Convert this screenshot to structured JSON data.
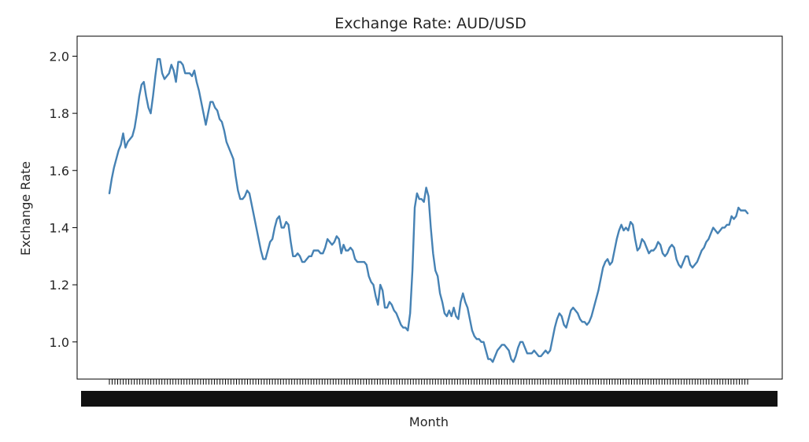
{
  "chart_data": {
    "type": "line",
    "title": "Exchange Rate: AUD/USD",
    "xlabel": "Month",
    "ylabel": "Exchange Rate",
    "ylim": [
      0.87,
      2.07
    ],
    "yticks": [
      "1.0",
      "1.2",
      "1.4",
      "1.6",
      "1.8",
      "2.0"
    ],
    "ytick_values": [
      1.0,
      1.2,
      1.4,
      1.6,
      1.8,
      2.0
    ],
    "x_tick_count": 232,
    "grid": false,
    "line_color": "#4682b4",
    "series": [
      {
        "values": [
          1.52,
          1.57,
          1.61,
          1.64,
          1.67,
          1.69,
          1.73,
          1.68,
          1.7,
          1.71,
          1.72,
          1.75,
          1.8,
          1.86,
          1.9,
          1.91,
          1.86,
          1.82,
          1.8,
          1.86,
          1.93,
          1.99,
          1.99,
          1.94,
          1.92,
          1.93,
          1.94,
          1.97,
          1.95,
          1.91,
          1.98,
          1.98,
          1.97,
          1.94,
          1.94,
          1.94,
          1.93,
          1.95,
          1.91,
          1.88,
          1.84,
          1.8,
          1.76,
          1.8,
          1.84,
          1.84,
          1.82,
          1.81,
          1.78,
          1.77,
          1.74,
          1.7,
          1.68,
          1.66,
          1.64,
          1.58,
          1.53,
          1.5,
          1.5,
          1.51,
          1.53,
          1.52,
          1.48,
          1.44,
          1.4,
          1.36,
          1.32,
          1.29,
          1.29,
          1.32,
          1.35,
          1.36,
          1.4,
          1.43,
          1.44,
          1.4,
          1.4,
          1.42,
          1.41,
          1.35,
          1.3,
          1.3,
          1.31,
          1.3,
          1.28,
          1.28,
          1.29,
          1.3,
          1.3,
          1.32,
          1.32,
          1.32,
          1.31,
          1.31,
          1.33,
          1.36,
          1.35,
          1.34,
          1.35,
          1.37,
          1.36,
          1.31,
          1.34,
          1.32,
          1.32,
          1.33,
          1.32,
          1.29,
          1.28,
          1.28,
          1.28,
          1.28,
          1.27,
          1.23,
          1.21,
          1.2,
          1.16,
          1.13,
          1.2,
          1.18,
          1.12,
          1.12,
          1.14,
          1.13,
          1.11,
          1.1,
          1.08,
          1.06,
          1.05,
          1.05,
          1.04,
          1.1,
          1.25,
          1.47,
          1.52,
          1.5,
          1.5,
          1.49,
          1.54,
          1.51,
          1.4,
          1.31,
          1.25,
          1.23,
          1.17,
          1.14,
          1.1,
          1.09,
          1.11,
          1.09,
          1.12,
          1.09,
          1.08,
          1.14,
          1.17,
          1.14,
          1.12,
          1.08,
          1.04,
          1.02,
          1.01,
          1.01,
          1.0,
          1.0,
          0.97,
          0.94,
          0.94,
          0.93,
          0.95,
          0.97,
          0.98,
          0.99,
          0.99,
          0.98,
          0.97,
          0.94,
          0.93,
          0.95,
          0.98,
          1.0,
          1.0,
          0.98,
          0.96,
          0.96,
          0.96,
          0.97,
          0.96,
          0.95,
          0.95,
          0.96,
          0.97,
          0.96,
          0.97,
          1.01,
          1.05,
          1.08,
          1.1,
          1.09,
          1.06,
          1.05,
          1.08,
          1.11,
          1.12,
          1.11,
          1.1,
          1.08,
          1.07,
          1.07,
          1.06,
          1.07,
          1.09,
          1.12,
          1.15,
          1.18,
          1.22,
          1.26,
          1.28,
          1.29,
          1.27,
          1.28,
          1.32,
          1.36,
          1.39,
          1.41,
          1.39,
          1.4,
          1.39,
          1.42,
          1.41,
          1.36,
          1.32,
          1.33,
          1.36,
          1.35,
          1.33,
          1.31,
          1.32,
          1.32,
          1.33,
          1.35,
          1.34,
          1.31,
          1.3,
          1.31,
          1.33,
          1.34,
          1.33,
          1.29,
          1.27,
          1.26,
          1.28,
          1.3,
          1.3,
          1.27,
          1.26,
          1.27,
          1.28,
          1.3,
          1.32,
          1.33,
          1.35,
          1.36,
          1.38,
          1.4,
          1.39,
          1.38,
          1.39,
          1.4,
          1.4,
          1.41,
          1.41,
          1.44,
          1.43,
          1.44,
          1.47,
          1.46,
          1.46,
          1.46,
          1.45
        ]
      }
    ]
  }
}
